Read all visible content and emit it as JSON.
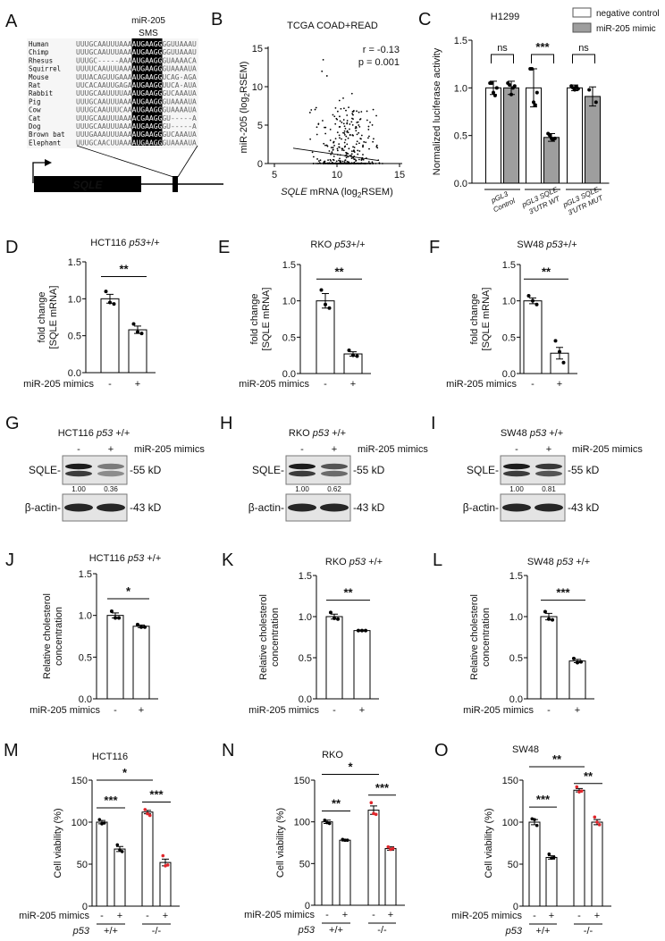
{
  "panels": {
    "A": {
      "label": "A",
      "header": [
        "miR-205",
        "SMS"
      ],
      "gene": "SQLE",
      "alignment": [
        {
          "species": "Human",
          "pre": "UUUGCAAUUUAAA",
          "seed": "AUGAAGG",
          "post": "GGUUAAAU"
        },
        {
          "species": "Chimp",
          "pre": "UUUGCAAUUUAAA",
          "seed": "AUGAAGG",
          "post": "GGUUAAAU"
        },
        {
          "species": "Rhesus",
          "pre": "UUUGC-----AAA",
          "seed": "AUGAAGG",
          "post": "GUAAAACA"
        },
        {
          "species": "Squirrel",
          "pre": "UUUUCAAUUUAAA",
          "seed": "AUGAAGG",
          "post": "GUAAAAUA"
        },
        {
          "species": "Mouse",
          "pre": "UUUACAGUUGAAA",
          "seed": "AUGAAGG",
          "post": "UCAG-AGA"
        },
        {
          "species": "Rat",
          "pre": "UUCACAAUUGAGA",
          "seed": "AUGAAGG",
          "post": "UUCA-AUA"
        },
        {
          "species": "Rabbit",
          "pre": "UUUGCAAUUUUAA",
          "seed": "AUGAAGG",
          "post": "GUCAAAUA"
        },
        {
          "species": "Pig",
          "pre": "UUUGCAAUUUAAA",
          "seed": "AUGAAGG",
          "post": "GUAAAAUA"
        },
        {
          "species": "Cow",
          "pre": "UUUGCAAUUUCAA",
          "seed": "AUGAAGG",
          "post": "GUAAAAUA"
        },
        {
          "species": "Cat",
          "pre": "UUUGCAAUUUAAA",
          "seed": "ACGAAGG",
          "post": "GU-----A"
        },
        {
          "species": "Dog",
          "pre": "UUUGCAAUUUAAA",
          "seed": "AUGAAGG",
          "post": "GU-----A"
        },
        {
          "species": "Brown bat",
          "pre": "UUUGAAAUUUAAA",
          "seed": "AUGAAGG",
          "post": "GUCAAAUA"
        },
        {
          "species": "Elephant",
          "pre": "UUUGCAACUUAAA",
          "seed": "AUGAAGG",
          "post": "GUAAAAUA"
        }
      ]
    },
    "G": {
      "label": "G",
      "title": [
        "HCT116 ",
        "p53",
        " +/+"
      ],
      "lanes": [
        "-",
        "+"
      ],
      "treatment": "miR-205 mimics",
      "bands": [
        {
          "name": "SQLE-",
          "size": "-55 kD"
        },
        {
          "name": "β-actin-",
          "size": "-43 kD"
        }
      ],
      "quant": [
        "1.00",
        "0.36"
      ],
      "intensity": [
        1.0,
        0.36
      ]
    },
    "H": {
      "label": "H",
      "title": [
        "RKO ",
        "p53",
        " +/+"
      ],
      "lanes": [
        "-",
        "+"
      ],
      "treatment": "miR-205 mimics",
      "bands": [
        {
          "name": "SQLE-",
          "size": "-55 kD"
        },
        {
          "name": "β-actin-",
          "size": "-43 kD"
        }
      ],
      "quant": [
        "1.00",
        "0.62"
      ],
      "intensity": [
        1.0,
        0.62
      ]
    },
    "I": {
      "label": "I",
      "title": [
        "SW48 ",
        "p53",
        " +/+"
      ],
      "lanes": [
        "-",
        "+"
      ],
      "treatment": "miR-205 mimics",
      "bands": [
        {
          "name": "SQLE-",
          "size": "-55 kD"
        },
        {
          "name": "β-actin-",
          "size": "-43 kD"
        }
      ],
      "quant": [
        "1.00",
        "0.81"
      ],
      "intensity": [
        1.0,
        0.81
      ]
    }
  },
  "colors": {
    "negative_control": "#ffffff",
    "mimic": "#9e9e9e",
    "wildtype_points": "#000000",
    "knockout_points": "#e0262b"
  },
  "chart_data": [
    {
      "id": "B",
      "label": "B",
      "type": "scatter",
      "title": "TCGA COAD+READ",
      "xlabel": [
        "SQLE",
        " mRNA (log",
        "2",
        "RSEM)"
      ],
      "ylabel": [
        "miR-205 (log",
        "2",
        "RSEM)"
      ],
      "xlim": [
        5,
        15
      ],
      "ylim": [
        0,
        15
      ],
      "xticks": [
        "5",
        "10",
        "15"
      ],
      "yticks": [
        "0",
        "5",
        "10",
        "15"
      ],
      "annotations": [
        "r = -0.13",
        "p = 0.001"
      ],
      "trendline": {
        "x": [
          6.5,
          13.3
        ],
        "y": [
          2.0,
          0.4
        ]
      },
      "notable_points": [
        {
          "x": 8.9,
          "y": 13.5
        },
        {
          "x": 8.8,
          "y": 12.0
        },
        {
          "x": 9.2,
          "y": 11.4
        },
        {
          "x": 11.2,
          "y": 9.1
        },
        {
          "x": 10.5,
          "y": 8.5
        },
        {
          "x": 10.2,
          "y": 8.2
        }
      ]
    },
    {
      "id": "C",
      "label": "C",
      "type": "bar",
      "title": "H1299",
      "ylabel": [
        "Normalized luciferase activity"
      ],
      "ylim": [
        0,
        1.5
      ],
      "yticks": [
        "0.0",
        "0.5",
        "1.0",
        "1.5"
      ],
      "legend": [
        {
          "name": "negative control",
          "color": "#ffffff"
        },
        {
          "name": "miR-205 mimic",
          "color": "#9e9e9e"
        }
      ],
      "groups": [
        [
          "pGL3",
          "Control"
        ],
        [
          "pGL3 SQLE",
          "3'UTR WT"
        ],
        [
          "pGL3 SQLE",
          "3'UTR MUT"
        ]
      ],
      "values": [
        1.0,
        1.0,
        1.0,
        0.48,
        1.0,
        0.91
      ],
      "errors": [
        0.07,
        0.07,
        0.2,
        0.04,
        0.03,
        0.1
      ],
      "bar_colors": [
        "#ffffff",
        "#9e9e9e",
        "#ffffff",
        "#9e9e9e",
        "#ffffff",
        "#9e9e9e"
      ],
      "points": [
        [
          1.05,
          1.05,
          0.95,
          0.92,
          1.0
        ],
        [
          1.05,
          1.03,
          0.93,
          1.0,
          1.02
        ],
        [
          1.2,
          1.2,
          0.85,
          0.82,
          0.95
        ],
        [
          0.52,
          0.5,
          0.47,
          0.46,
          0.47
        ],
        [
          1.02,
          1.0,
          0.98,
          1.01,
          0.99
        ],
        [
          0.98,
          0.85
        ]
      ],
      "significance": [
        {
          "text": "ns",
          "bars": [
            0,
            1
          ],
          "level": 1.35
        },
        {
          "text": "***",
          "bars": [
            2,
            3
          ],
          "level": 1.35
        },
        {
          "text": "ns",
          "bars": [
            4,
            5
          ],
          "level": 1.35
        }
      ]
    },
    {
      "id": "D",
      "label": "D",
      "type": "bar",
      "title": [
        "HCT116 ",
        "p53",
        "+/+"
      ],
      "ylabel": [
        "fold change",
        "[SQLE mRNA]"
      ],
      "ylim": [
        0,
        1.5
      ],
      "yticks": [
        "0.0",
        "0.5",
        "1.0",
        "1.5"
      ],
      "row_labels": [
        "miR-205 mimics"
      ],
      "rows": [
        [
          "-",
          "+"
        ]
      ],
      "values": [
        1.0,
        0.58
      ],
      "errors": [
        0.06,
        0.05
      ],
      "points": [
        [
          1.1,
          0.95,
          0.93
        ],
        [
          0.66,
          0.55,
          0.53
        ]
      ],
      "significance": [
        {
          "text": "**",
          "bars": [
            0,
            1
          ],
          "level": 1.3
        }
      ]
    },
    {
      "id": "E",
      "label": "E",
      "type": "bar",
      "title": [
        "RKO ",
        "p53",
        "+/+"
      ],
      "ylabel": [
        "fold change",
        "[SQLE mRNA]"
      ],
      "ylim": [
        0,
        1.5
      ],
      "yticks": [
        "0.0",
        "0.5",
        "1.0",
        "1.5"
      ],
      "row_labels": [
        "miR-205 mimics"
      ],
      "rows": [
        [
          "-",
          "+"
        ]
      ],
      "values": [
        1.0,
        0.27
      ],
      "errors": [
        0.1,
        0.03
      ],
      "points": [
        [
          1.15,
          0.95,
          0.9
        ],
        [
          0.32,
          0.25,
          0.24
        ]
      ],
      "significance": [
        {
          "text": "**",
          "bars": [
            0,
            1
          ],
          "level": 1.3
        }
      ]
    },
    {
      "id": "F",
      "label": "F",
      "type": "bar",
      "title": [
        "SW48 ",
        "p53",
        "+/+"
      ],
      "ylabel": [
        "fold change",
        "[SQLE mRNA]"
      ],
      "ylim": [
        0,
        1.5
      ],
      "yticks": [
        "0.0",
        "0.5",
        "1.0",
        "1.5"
      ],
      "row_labels": [
        "miR-205 mimics"
      ],
      "rows": [
        [
          "-",
          "+"
        ]
      ],
      "values": [
        1.0,
        0.28
      ],
      "errors": [
        0.04,
        0.08
      ],
      "points": [
        [
          1.07,
          1.0,
          0.95
        ],
        [
          0.45,
          0.3,
          0.15
        ]
      ],
      "significance": [
        {
          "text": "**",
          "bars": [
            0,
            1
          ],
          "level": 1.3
        }
      ]
    },
    {
      "id": "J",
      "label": "J",
      "type": "bar",
      "title": [
        "HCT116 ",
        "p53",
        " +/+"
      ],
      "ylabel": [
        "Relative cholesterol",
        "concentration"
      ],
      "ylim": [
        0,
        1.5
      ],
      "yticks": [
        "0.0",
        "0.5",
        "1.0",
        "1.5"
      ],
      "row_labels": [
        "miR-205 mimics"
      ],
      "rows": [
        [
          "-",
          "+"
        ]
      ],
      "values": [
        1.0,
        0.87
      ],
      "errors": [
        0.03,
        0.015
      ],
      "points": [
        [
          1.05,
          0.97,
          0.97
        ],
        [
          0.89,
          0.86,
          0.86
        ]
      ],
      "significance": [
        {
          "text": "*",
          "bars": [
            0,
            1
          ],
          "level": 1.2
        }
      ]
    },
    {
      "id": "K",
      "label": "K",
      "type": "bar",
      "title": [
        "RKO ",
        "p53",
        " +/+"
      ],
      "ylabel": [
        "Relative cholesterol",
        "concentration"
      ],
      "ylim": [
        0,
        1.5
      ],
      "yticks": [
        "0.0",
        "0.5",
        "1.0",
        "1.5"
      ],
      "row_labels": [
        "miR-205 mimics"
      ],
      "rows": [
        [
          "-",
          "+"
        ]
      ],
      "values": [
        1.0,
        0.83
      ],
      "errors": [
        0.03,
        0.005
      ],
      "points": [
        [
          1.05,
          0.98,
          0.97
        ],
        [
          0.83,
          0.83,
          0.83
        ]
      ],
      "significance": [
        {
          "text": "**",
          "bars": [
            0,
            1
          ],
          "level": 1.2
        }
      ]
    },
    {
      "id": "L",
      "label": "L",
      "type": "bar",
      "title": [
        "SW48 ",
        "p53",
        " +/+"
      ],
      "ylabel": [
        "Relative cholesterol",
        "concentration"
      ],
      "ylim": [
        0,
        1.5
      ],
      "yticks": [
        "0.0",
        "0.5",
        "1.0",
        "1.5"
      ],
      "row_labels": [
        "miR-205 mimics"
      ],
      "rows": [
        [
          "-",
          "+"
        ]
      ],
      "values": [
        1.0,
        0.46
      ],
      "errors": [
        0.04,
        0.02
      ],
      "points": [
        [
          1.06,
          0.97,
          0.96
        ],
        [
          0.49,
          0.44,
          0.45
        ]
      ],
      "significance": [
        {
          "text": "***",
          "bars": [
            0,
            1
          ],
          "level": 1.2
        }
      ]
    },
    {
      "id": "M",
      "label": "M",
      "type": "bar",
      "title": [
        "HCT116"
      ],
      "ylabel": [
        "Cell viability (%)"
      ],
      "ylim": [
        0,
        150
      ],
      "yticks": [
        "0",
        "50",
        "100",
        "150"
      ],
      "row_labels": [
        "miR-205 mimics",
        "p53"
      ],
      "rows": [
        [
          "-",
          "+",
          "-",
          "+"
        ],
        [
          "+/+",
          "-/-"
        ]
      ],
      "values": [
        100,
        68,
        112,
        52
      ],
      "errors": [
        2,
        3,
        2,
        4
      ],
      "point_colors": [
        "#000000",
        "#000000",
        "#e0262b",
        "#e0262b"
      ],
      "points": [
        [
          103,
          98,
          99
        ],
        [
          73,
          67,
          65
        ],
        [
          115,
          110,
          108
        ],
        [
          60,
          48,
          49
        ]
      ],
      "significance": [
        {
          "text": "***",
          "bars": [
            0,
            1
          ],
          "level": 117
        },
        {
          "text": "***",
          "bars": [
            2,
            3
          ],
          "level": 124
        },
        {
          "text": "*",
          "bars": [
            0,
            2
          ],
          "level": 150
        }
      ]
    },
    {
      "id": "N",
      "label": "N",
      "type": "bar",
      "title": [
        "RKO"
      ],
      "ylabel": [
        "Cell viability (%)"
      ],
      "ylim": [
        0,
        150
      ],
      "yticks": [
        "0",
        "50",
        "100",
        "150"
      ],
      "row_labels": [
        "miR-205 mimics",
        "p53"
      ],
      "rows": [
        [
          "-",
          "+",
          "-",
          "+"
        ],
        [
          "+/+",
          "-/-"
        ]
      ],
      "values": [
        100,
        78,
        114,
        68
      ],
      "errors": [
        2,
        1,
        5,
        2
      ],
      "point_colors": [
        "#000000",
        "#000000",
        "#e0262b",
        "#e0262b"
      ],
      "points": [
        [
          102,
          99,
          98
        ],
        [
          79,
          78,
          78
        ],
        [
          123,
          110,
          109
        ],
        [
          70,
          67,
          68
        ]
      ],
      "significance": [
        {
          "text": "**",
          "bars": [
            0,
            1
          ],
          "level": 113
        },
        {
          "text": "***",
          "bars": [
            2,
            3
          ],
          "level": 132
        },
        {
          "text": "*",
          "bars": [
            0,
            2
          ],
          "level": 157
        }
      ]
    },
    {
      "id": "O",
      "label": "O",
      "type": "bar",
      "title": [
        "SW48"
      ],
      "ylabel": [
        "Cell viability (%)"
      ],
      "ylim": [
        0,
        150
      ],
      "yticks": [
        "0",
        "50",
        "100",
        "150"
      ],
      "row_labels": [
        "miR-205 mimics",
        "p53"
      ],
      "rows": [
        [
          "-",
          "+",
          "-",
          "+"
        ],
        [
          "+/+",
          "-/-"
        ]
      ],
      "values": [
        100,
        58,
        138,
        100
      ],
      "errors": [
        3,
        2,
        2,
        3
      ],
      "point_colors": [
        "#000000",
        "#000000",
        "#e0262b",
        "#e0262b"
      ],
      "points": [
        [
          104,
          103,
          96
        ],
        [
          62,
          57,
          58
        ],
        [
          142,
          136,
          137
        ],
        [
          106,
          100,
          97
        ]
      ],
      "significance": [
        {
          "text": "***",
          "bars": [
            0,
            1
          ],
          "level": 118
        },
        {
          "text": "**",
          "bars": [
            2,
            3
          ],
          "level": 146
        },
        {
          "text": "**",
          "bars": [
            0,
            2
          ],
          "level": 166
        }
      ]
    }
  ]
}
